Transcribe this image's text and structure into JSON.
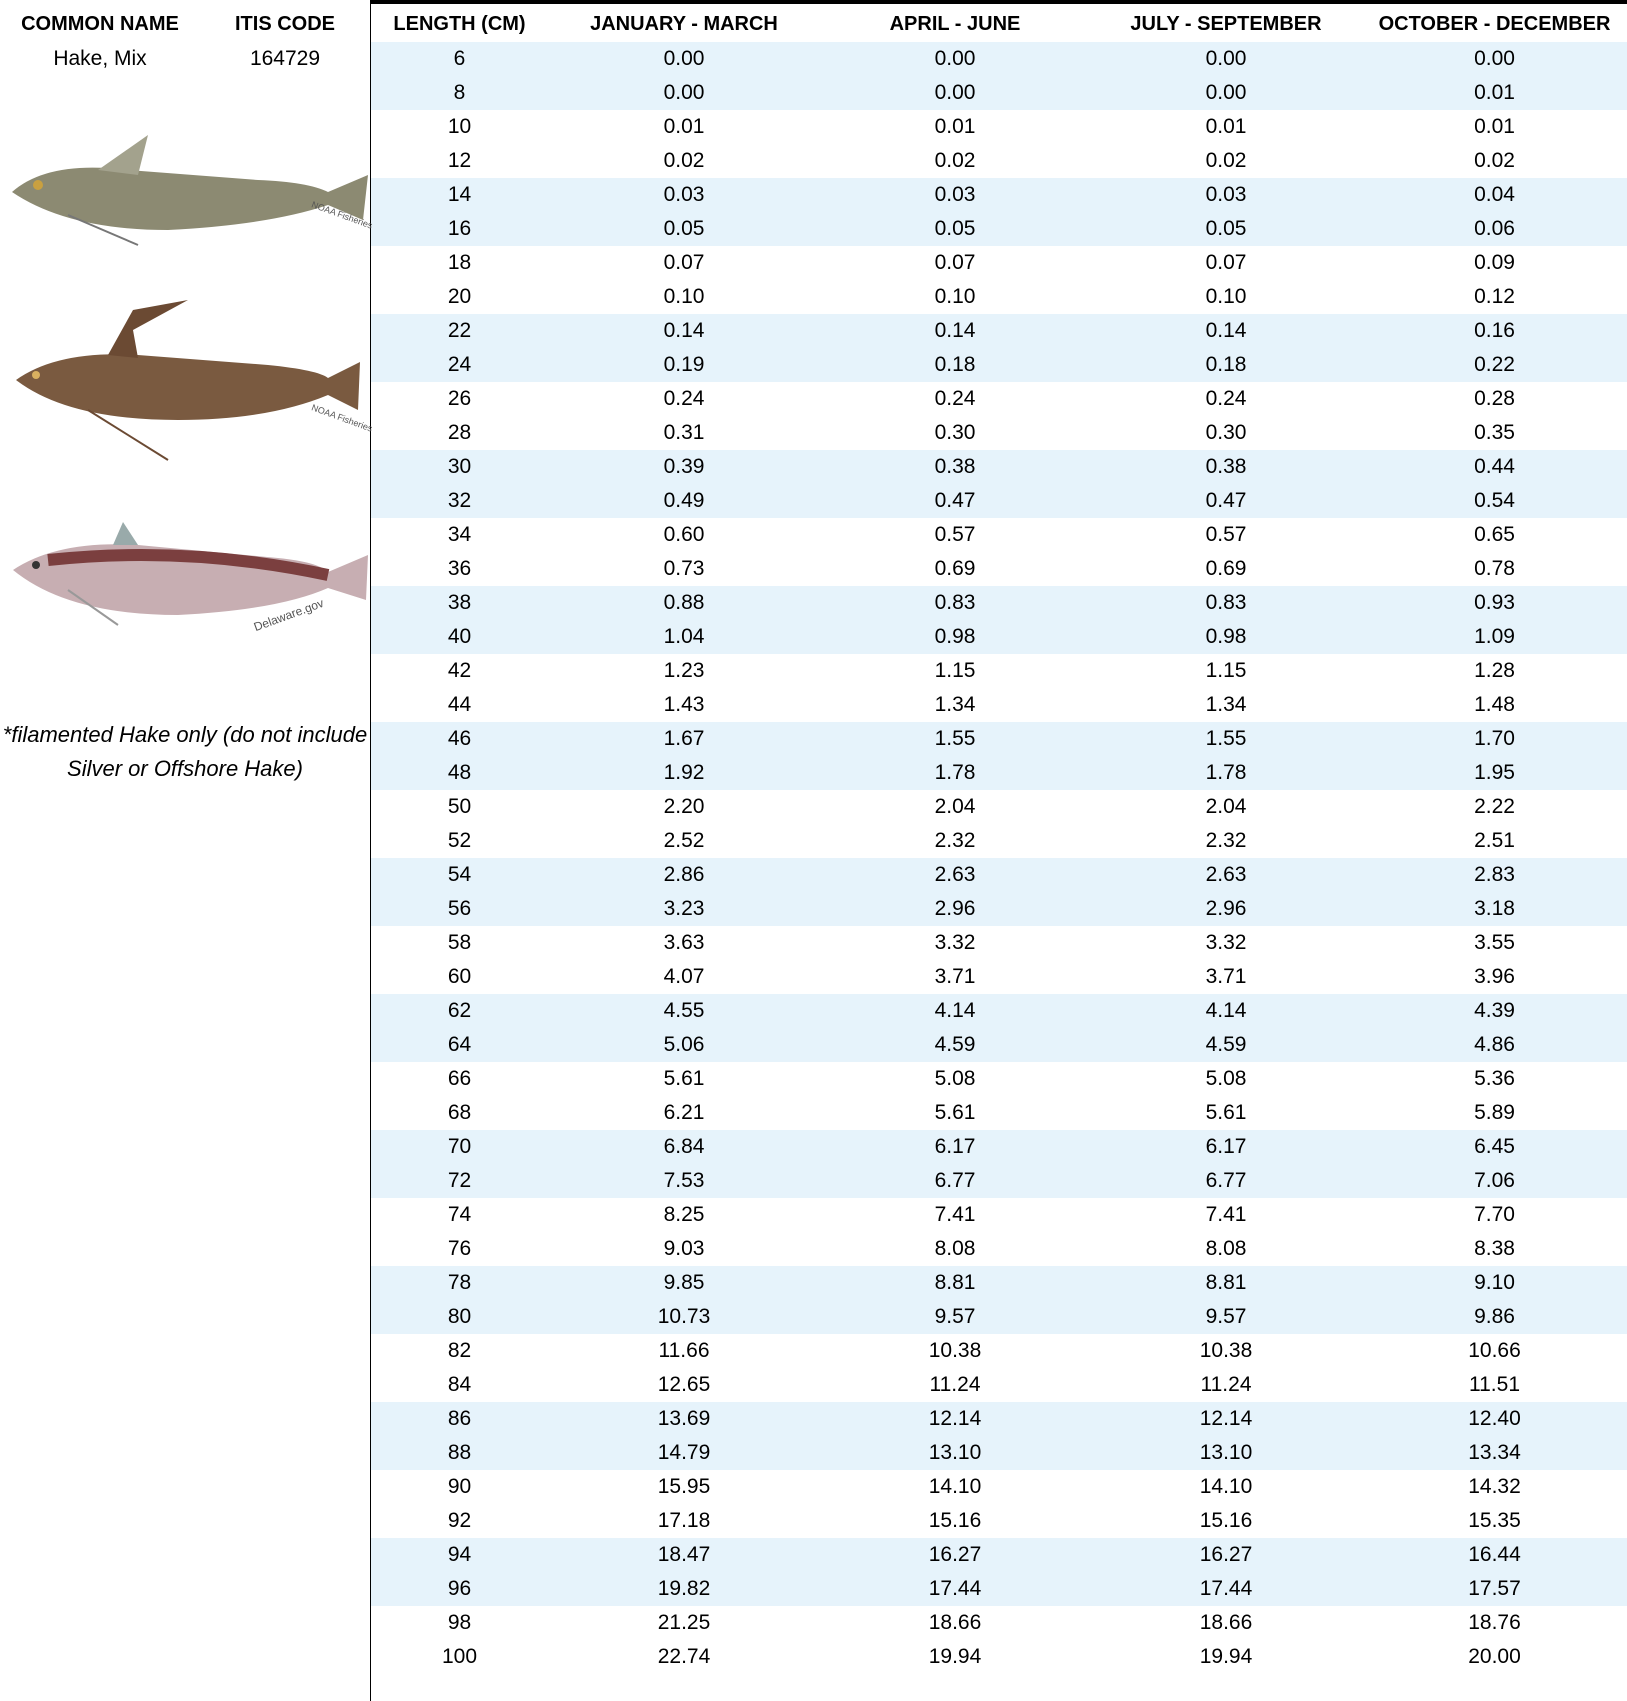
{
  "header": {
    "common_name": "COMMON NAME",
    "itis_code": "ITIS CODE",
    "columns": [
      "LENGTH (CM)",
      "JANUARY - MARCH",
      "APRIL - JUNE",
      "JULY - SEPTEMBER",
      "OCTOBER - DECEMBER"
    ]
  },
  "species": {
    "common_name": "Hake, Mix",
    "itis_code": "164729",
    "note": "*filamented Hake only (do not include Silver or Offshore Hake)",
    "image_credits": [
      "NOAA Fisheries",
      "NOAA Fisheries",
      "Delaware.gov"
    ]
  },
  "table": {
    "rows": [
      [
        "6",
        "0.00",
        "0.00",
        "0.00",
        "0.00"
      ],
      [
        "8",
        "0.00",
        "0.00",
        "0.00",
        "0.01"
      ],
      [
        "10",
        "0.01",
        "0.01",
        "0.01",
        "0.01"
      ],
      [
        "12",
        "0.02",
        "0.02",
        "0.02",
        "0.02"
      ],
      [
        "14",
        "0.03",
        "0.03",
        "0.03",
        "0.04"
      ],
      [
        "16",
        "0.05",
        "0.05",
        "0.05",
        "0.06"
      ],
      [
        "18",
        "0.07",
        "0.07",
        "0.07",
        "0.09"
      ],
      [
        "20",
        "0.10",
        "0.10",
        "0.10",
        "0.12"
      ],
      [
        "22",
        "0.14",
        "0.14",
        "0.14",
        "0.16"
      ],
      [
        "24",
        "0.19",
        "0.18",
        "0.18",
        "0.22"
      ],
      [
        "26",
        "0.24",
        "0.24",
        "0.24",
        "0.28"
      ],
      [
        "28",
        "0.31",
        "0.30",
        "0.30",
        "0.35"
      ],
      [
        "30",
        "0.39",
        "0.38",
        "0.38",
        "0.44"
      ],
      [
        "32",
        "0.49",
        "0.47",
        "0.47",
        "0.54"
      ],
      [
        "34",
        "0.60",
        "0.57",
        "0.57",
        "0.65"
      ],
      [
        "36",
        "0.73",
        "0.69",
        "0.69",
        "0.78"
      ],
      [
        "38",
        "0.88",
        "0.83",
        "0.83",
        "0.93"
      ],
      [
        "40",
        "1.04",
        "0.98",
        "0.98",
        "1.09"
      ],
      [
        "42",
        "1.23",
        "1.15",
        "1.15",
        "1.28"
      ],
      [
        "44",
        "1.43",
        "1.34",
        "1.34",
        "1.48"
      ],
      [
        "46",
        "1.67",
        "1.55",
        "1.55",
        "1.70"
      ],
      [
        "48",
        "1.92",
        "1.78",
        "1.78",
        "1.95"
      ],
      [
        "50",
        "2.20",
        "2.04",
        "2.04",
        "2.22"
      ],
      [
        "52",
        "2.52",
        "2.32",
        "2.32",
        "2.51"
      ],
      [
        "54",
        "2.86",
        "2.63",
        "2.63",
        "2.83"
      ],
      [
        "56",
        "3.23",
        "2.96",
        "2.96",
        "3.18"
      ],
      [
        "58",
        "3.63",
        "3.32",
        "3.32",
        "3.55"
      ],
      [
        "60",
        "4.07",
        "3.71",
        "3.71",
        "3.96"
      ],
      [
        "62",
        "4.55",
        "4.14",
        "4.14",
        "4.39"
      ],
      [
        "64",
        "5.06",
        "4.59",
        "4.59",
        "4.86"
      ],
      [
        "66",
        "5.61",
        "5.08",
        "5.08",
        "5.36"
      ],
      [
        "68",
        "6.21",
        "5.61",
        "5.61",
        "5.89"
      ],
      [
        "70",
        "6.84",
        "6.17",
        "6.17",
        "6.45"
      ],
      [
        "72",
        "7.53",
        "6.77",
        "6.77",
        "7.06"
      ],
      [
        "74",
        "8.25",
        "7.41",
        "7.41",
        "7.70"
      ],
      [
        "76",
        "9.03",
        "8.08",
        "8.08",
        "8.38"
      ],
      [
        "78",
        "9.85",
        "8.81",
        "8.81",
        "9.10"
      ],
      [
        "80",
        "10.73",
        "9.57",
        "9.57",
        "9.86"
      ],
      [
        "82",
        "11.66",
        "10.38",
        "10.38",
        "10.66"
      ],
      [
        "84",
        "12.65",
        "11.24",
        "11.24",
        "11.51"
      ],
      [
        "86",
        "13.69",
        "12.14",
        "12.14",
        "12.40"
      ],
      [
        "88",
        "14.79",
        "13.10",
        "13.10",
        "13.34"
      ],
      [
        "90",
        "15.95",
        "14.10",
        "14.10",
        "14.32"
      ],
      [
        "92",
        "17.18",
        "15.16",
        "15.16",
        "15.35"
      ],
      [
        "94",
        "18.47",
        "16.27",
        "16.27",
        "16.44"
      ],
      [
        "96",
        "19.82",
        "17.44",
        "17.44",
        "17.57"
      ],
      [
        "98",
        "21.25",
        "18.66",
        "18.66",
        "18.76"
      ],
      [
        "100",
        "22.74",
        "19.94",
        "19.94",
        "20.00"
      ]
    ]
  }
}
